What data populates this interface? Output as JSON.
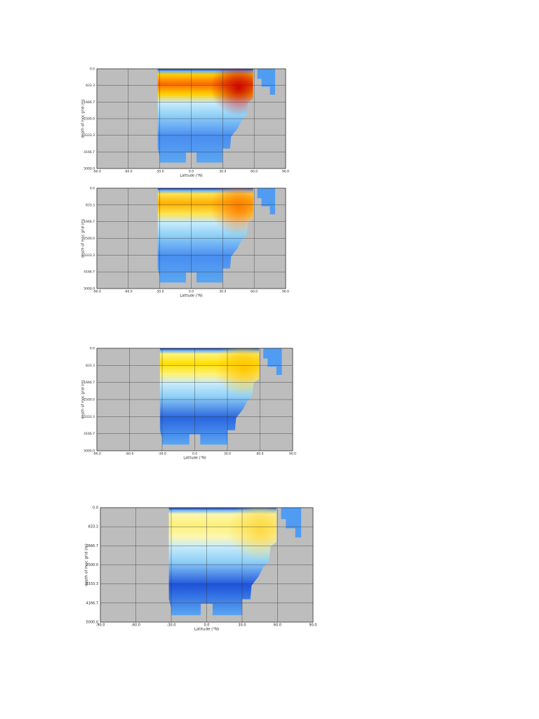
{
  "chart_data": [
    {
      "type": "heatmap",
      "xlabel": "Latitude (°N)",
      "ylabel": "depth of moc grid (m)",
      "xlim": [
        -90,
        90
      ],
      "ylim": [
        0,
        5000
      ],
      "y_inverted": true,
      "grid": true,
      "xticks": [
        {
          "value": -90,
          "label": "-90.0"
        },
        {
          "value": -60,
          "label": "-60.0"
        },
        {
          "value": -30,
          "label": "-30.0"
        },
        {
          "value": 0,
          "label": "0.0"
        },
        {
          "value": 30,
          "label": "30.0"
        },
        {
          "value": 60,
          "label": "60.0"
        },
        {
          "value": 90,
          "label": "90.0"
        }
      ],
      "yticks": [
        {
          "value": 0,
          "label": "0.0"
        },
        833.3,
        1666.7,
        {
          "value": 2500,
          "label": "2500.0"
        },
        3333.3,
        4166.7,
        {
          "value": 5000,
          "label": "5000.0"
        }
      ]
    },
    {
      "type": "heatmap",
      "xlabel": "Latitude (°N)",
      "ylabel": "depth of moc grid (m)",
      "xlim": [
        -90,
        90
      ],
      "ylim": [
        0,
        5000
      ],
      "y_inverted": true,
      "grid": true,
      "xticks": [
        {
          "value": -90,
          "label": "-90.0"
        },
        {
          "value": -60,
          "label": "-60.0"
        },
        {
          "value": -30,
          "label": "-30.0"
        },
        {
          "value": 0,
          "label": "0.0"
        },
        {
          "value": 30,
          "label": "30.0"
        },
        {
          "value": 60,
          "label": "60.0"
        },
        {
          "value": 90,
          "label": "90.0"
        }
      ],
      "yticks": [
        {
          "value": 0,
          "label": "0.0"
        },
        833.3,
        1666.7,
        {
          "value": 2500,
          "label": "2500.0"
        },
        3333.3,
        4166.7,
        {
          "value": 5000,
          "label": "5000.0"
        }
      ]
    },
    {
      "type": "heatmap",
      "xlabel": "Latitude (°N)",
      "ylabel": "depth of moc grid (m)",
      "xlim": [
        -90,
        90
      ],
      "ylim": [
        0,
        5000
      ],
      "y_inverted": true,
      "grid": true,
      "xticks": [
        {
          "value": -90,
          "label": "-90.0"
        },
        {
          "value": -60,
          "label": "-60.0"
        },
        {
          "value": -30,
          "label": "-30.0"
        },
        {
          "value": 0,
          "label": "0.0"
        },
        {
          "value": 30,
          "label": "30.0"
        },
        {
          "value": 60,
          "label": "60.0"
        },
        {
          "value": 90,
          "label": "90.0"
        }
      ],
      "yticks": [
        {
          "value": 0,
          "label": "0.0"
        },
        833.3,
        1666.7,
        {
          "value": 2500,
          "label": "2500.0"
        },
        3333.3,
        4166.7,
        {
          "value": 5000,
          "label": "5000.0"
        }
      ]
    },
    {
      "type": "heatmap",
      "xlabel": "Latitude (°N)",
      "ylabel": "depth of moc grid (m)",
      "xlim": [
        -90,
        90
      ],
      "ylim": [
        0,
        5000
      ],
      "y_inverted": true,
      "grid": true,
      "xticks": [
        {
          "value": -90,
          "label": "-90.0"
        },
        {
          "value": -60,
          "label": "-60.0"
        },
        {
          "value": -30,
          "label": "-30.0"
        },
        {
          "value": 0,
          "label": "0.0"
        },
        {
          "value": 30,
          "label": "30.0"
        },
        {
          "value": 60,
          "label": "60.0"
        },
        {
          "value": 90,
          "label": "90.0"
        }
      ],
      "yticks": [
        {
          "value": 0,
          "label": "0.0"
        },
        833.3,
        1666.7,
        {
          "value": 2500,
          "label": "2500.0"
        },
        3333.3,
        4166.7,
        {
          "value": 5000,
          "label": "5000.0"
        }
      ]
    }
  ]
}
